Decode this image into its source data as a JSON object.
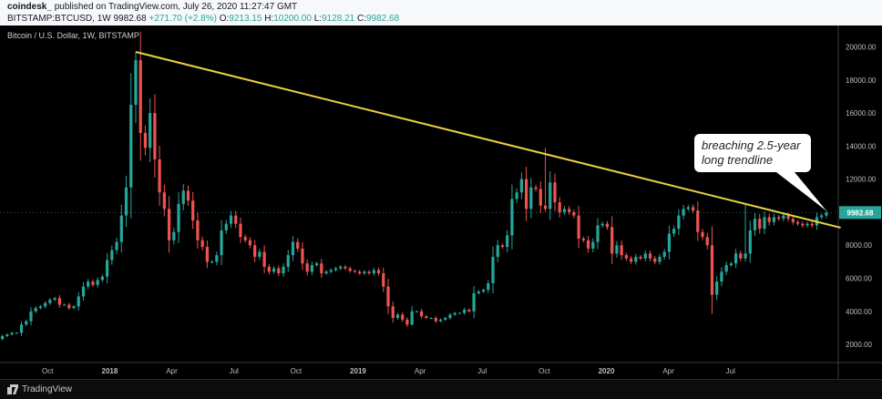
{
  "header": {
    "author": "coindesk_",
    "published_text": "published on TradingView.com, July 26, 2020 11:27:47 GMT",
    "symbol": "BITSTAMP:BTCUSD, 1W",
    "last": "9982.68",
    "change": "+271.70 (+2.8%)",
    "o_label": "O:",
    "o_value": "9213.15",
    "h_label": "H:",
    "h_value": "10200.00",
    "l_label": "L:",
    "l_value": "9128.21",
    "c_label": "C:",
    "c_value": "9982.68"
  },
  "footer": {
    "brand": "TradingView"
  },
  "colors": {
    "up": "#26a69a",
    "down": "#ef5350",
    "trendline": "#e8d04a",
    "background": "#000000",
    "axis_text": "#bdbdbd",
    "price_tag": "#26a69a"
  },
  "chart_data": {
    "type": "candlestick",
    "title": "Bitcoin / U.S. Dollar, 1W, BITSTAMP",
    "x_ticks": [
      "Oct",
      "2018",
      "Apr",
      "Jul",
      "Oct",
      "2019",
      "Apr",
      "Jul",
      "Oct",
      "2020",
      "Apr",
      "Jul"
    ],
    "y_ticks": [
      "2000.00",
      "4000.00",
      "6000.00",
      "8000.00",
      "10000.00",
      "12000.00",
      "14000.00",
      "16000.00",
      "18000.00",
      "20000.00"
    ],
    "ylim": [
      900,
      21300
    ],
    "y_scale": "linear",
    "x_range_weeks": [
      0,
      176
    ],
    "weeks_per_month": 4.345,
    "first_tick_week": 10,
    "last_price_tag": "9982.68",
    "closes": [
      2500,
      2600,
      2700,
      2700,
      3200,
      3400,
      4000,
      4200,
      4300,
      4500,
      4700,
      4800,
      4400,
      4400,
      4200,
      4300,
      4900,
      5500,
      5800,
      5600,
      5900,
      6100,
      7100,
      7700,
      8200,
      9800,
      11500,
      16500,
      19200,
      14800,
      13900,
      16000,
      13200,
      11200,
      10200,
      8300,
      8800,
      10500,
      11300,
      10700,
      9500,
      8300,
      7900,
      7000,
      7000,
      7400,
      8900,
      9300,
      9800,
      9300,
      8500,
      8300,
      8000,
      7300,
      7600,
      6700,
      6400,
      6600,
      6300,
      6700,
      7400,
      8200,
      7800,
      6900,
      6400,
      6800,
      6900,
      6300,
      6400,
      6500,
      6600,
      6700,
      6600,
      6450,
      6400,
      6300,
      6400,
      6300,
      6500,
      6300,
      5500,
      4300,
      3600,
      3800,
      3500,
      3200,
      4000,
      4000,
      3700,
      3600,
      3600,
      3400,
      3500,
      3600,
      3800,
      3900,
      3900,
      4100,
      4000,
      5100,
      5200,
      5300,
      5700,
      7300,
      8000,
      7900,
      8600,
      10800,
      11200,
      12000,
      10200,
      11500,
      11400,
      10400,
      10200,
      11800,
      10600,
      10000,
      10200,
      10000,
      9800,
      8400,
      8300,
      7800,
      8200,
      9200,
      9300,
      9100,
      7500,
      8000,
      7400,
      7200,
      7000,
      7300,
      7200,
      7500,
      7200,
      7000,
      7300,
      7600,
      8700,
      9000,
      9800,
      10200,
      10300,
      10100,
      8800,
      8500,
      8000,
      5000,
      5800,
      6400,
      6800,
      6900,
      7500,
      7200,
      7500,
      8900,
      9600,
      9000,
      9700,
      9400,
      9700,
      9600,
      9800,
      9600,
      9400,
      9300,
      9200,
      9300,
      9200,
      9700,
      9800,
      9980
    ],
    "highs": [
      {
        "week": 28,
        "value": 19700
      },
      {
        "week": 114,
        "value": 13900
      },
      {
        "week": 156,
        "value": 10500
      }
    ],
    "lows": [
      {
        "week": 86,
        "value": 3150
      },
      {
        "week": 149,
        "value": 3850
      }
    ],
    "trendline": {
      "from": {
        "week": 28,
        "value": 19700
      },
      "to": {
        "week": 176,
        "value": 9100
      },
      "color": "#e8d04a"
    },
    "annotation": {
      "line1": "breaching 2.5-year",
      "line2": "long trendline"
    }
  }
}
